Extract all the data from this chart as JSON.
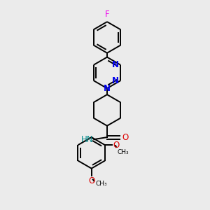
{
  "bg_color": "#ebebeb",
  "bond_color": "#000000",
  "N_color": "#0000ee",
  "O_color": "#dd0000",
  "F_color": "#ee00ee",
  "H_color": "#008888",
  "line_width": 1.4,
  "dbo": 0.12,
  "fig_width": 3.0,
  "fig_height": 3.0,
  "dpi": 100,
  "xlim": [
    0,
    10
  ],
  "ylim": [
    0,
    10
  ]
}
